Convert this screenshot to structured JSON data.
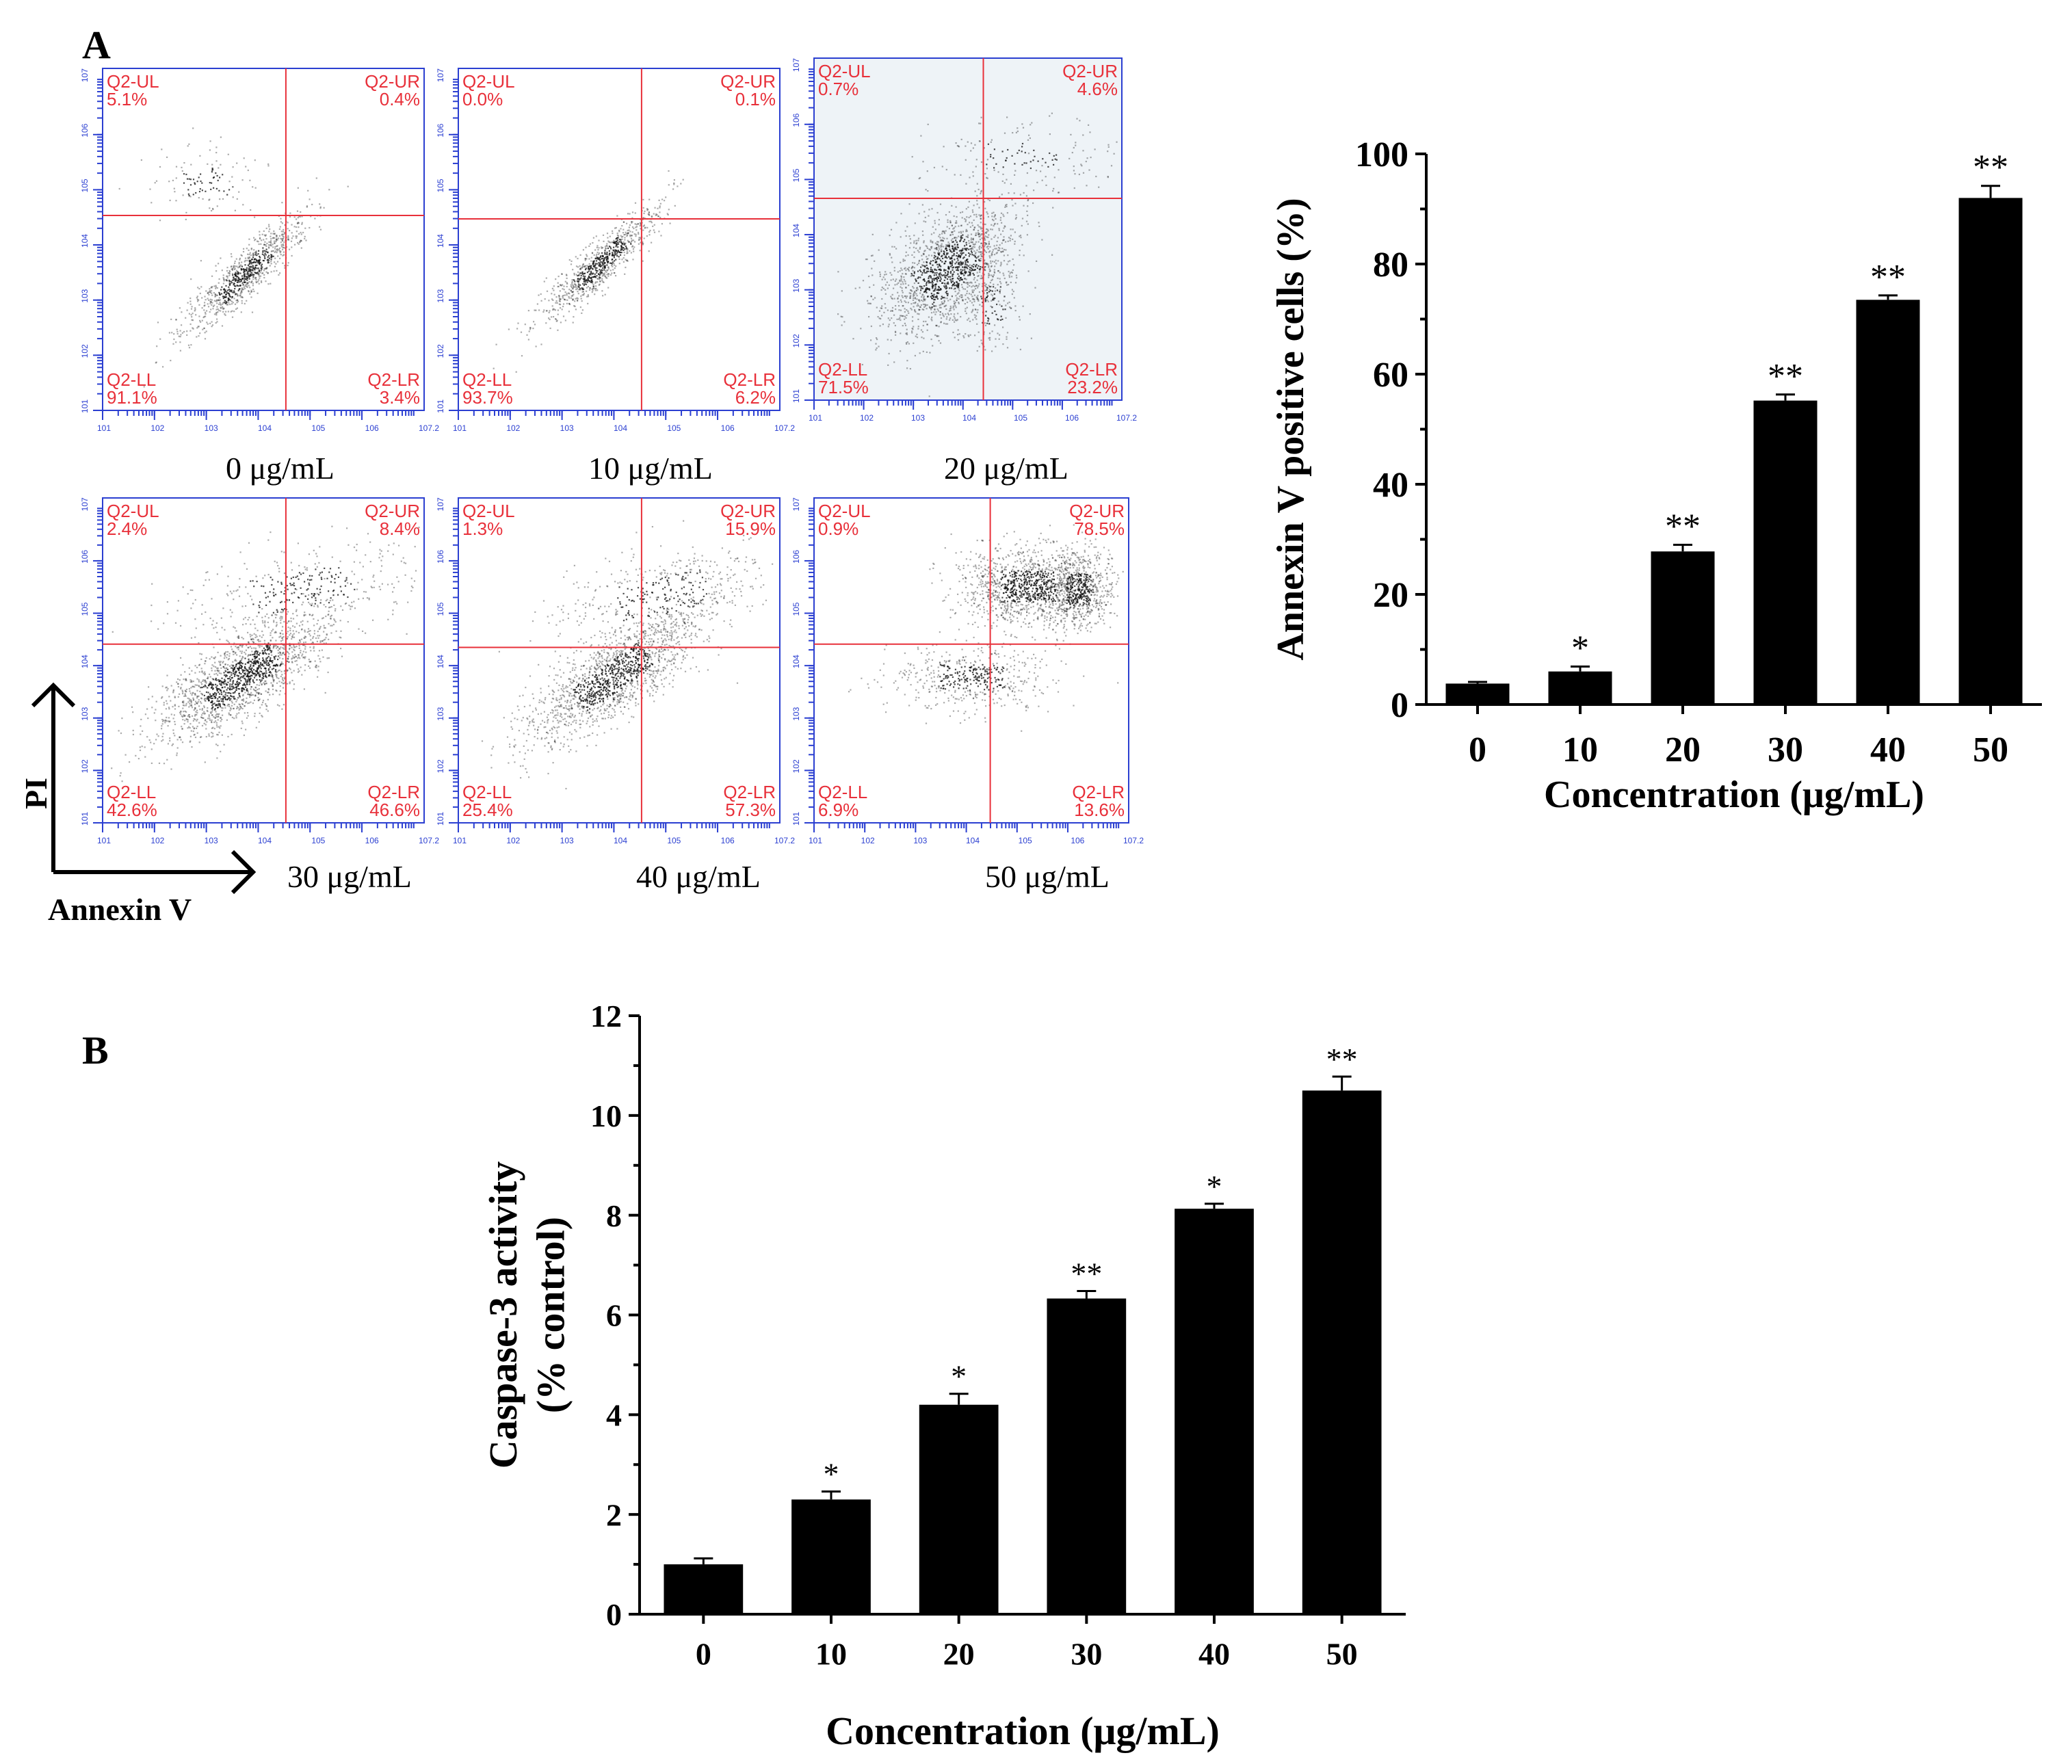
{
  "figure": {
    "panel_a_label": "A",
    "panel_b_label": "B",
    "facs_axis_y_label": "PI",
    "facs_axis_x_label": "Annexin V",
    "facs_gate_color": "#e8303a",
    "facs_axis_color": "#2b3fd1",
    "facs_x_ticks": [
      "1",
      "2",
      "3",
      "4",
      "5",
      "6",
      "7.2"
    ],
    "facs_y_ticks": [
      "1",
      "2",
      "3",
      "4",
      "5",
      "6",
      "7"
    ]
  },
  "flow_panels": [
    {
      "caption": "0 μg/mL",
      "quadrants": {
        "ul": {
          "name": "Q2-UL",
          "pct": "5.1%"
        },
        "ur": {
          "name": "Q2-UR",
          "pct": "0.4%"
        },
        "ll": {
          "name": "Q2-LL",
          "pct": "91.1%"
        },
        "lr": {
          "name": "Q2-LR",
          "pct": "3.4%"
        }
      }
    },
    {
      "caption": "10 μg/mL",
      "quadrants": {
        "ul": {
          "name": "Q2-UL",
          "pct": "0.0%"
        },
        "ur": {
          "name": "Q2-UR",
          "pct": "0.1%"
        },
        "ll": {
          "name": "Q2-LL",
          "pct": "93.7%"
        },
        "lr": {
          "name": "Q2-LR",
          "pct": "6.2%"
        }
      }
    },
    {
      "caption": "20 μg/mL",
      "quadrants": {
        "ul": {
          "name": "Q2-UL",
          "pct": "0.7%"
        },
        "ur": {
          "name": "Q2-UR",
          "pct": "4.6%"
        },
        "ll": {
          "name": "Q2-LL",
          "pct": "71.5%"
        },
        "lr": {
          "name": "Q2-LR",
          "pct": "23.2%"
        }
      }
    },
    {
      "caption": "30 μg/mL",
      "quadrants": {
        "ul": {
          "name": "Q2-UL",
          "pct": "2.4%"
        },
        "ur": {
          "name": "Q2-UR",
          "pct": "8.4%"
        },
        "ll": {
          "name": "Q2-LL",
          "pct": "42.6%"
        },
        "lr": {
          "name": "Q2-LR",
          "pct": "46.6%"
        }
      }
    },
    {
      "caption": "40 μg/mL",
      "quadrants": {
        "ul": {
          "name": "Q2-UL",
          "pct": "1.3%"
        },
        "ur": {
          "name": "Q2-UR",
          "pct": "15.9%"
        },
        "ll": {
          "name": "Q2-LL",
          "pct": "25.4%"
        },
        "lr": {
          "name": "Q2-LR",
          "pct": "57.3%"
        }
      }
    },
    {
      "caption": "50 μg/mL",
      "quadrants": {
        "ul": {
          "name": "Q2-UL",
          "pct": "0.9%"
        },
        "ur": {
          "name": "Q2-UR",
          "pct": "78.5%"
        },
        "ll": {
          "name": "Q2-LL",
          "pct": "6.9%"
        },
        "lr": {
          "name": "Q2-LR",
          "pct": "13.6%"
        }
      }
    }
  ],
  "chart_data": [
    {
      "type": "bar",
      "title": "",
      "xlabel": "Concentration (μg/mL)",
      "ylabel": "Annexin V positive cells (%)",
      "categories": [
        "0",
        "10",
        "20",
        "30",
        "40",
        "50"
      ],
      "values": [
        3.8,
        6.0,
        27.8,
        55.2,
        73.5,
        92.0
      ],
      "errors": [
        0.3,
        0.9,
        1.2,
        1.1,
        0.8,
        2.2
      ],
      "significance": [
        "",
        "*",
        "**",
        "**",
        "**",
        "**"
      ],
      "ylim": [
        0,
        100
      ],
      "yticks": [
        "0",
        "20",
        "40",
        "60",
        "80",
        "100"
      ],
      "grid": false,
      "bar_color": "#000000"
    },
    {
      "type": "bar",
      "title": "",
      "xlabel": "Concentration (μg/mL)",
      "ylabel": "Caspase-3 activity (% control)",
      "ylabel_lines": [
        "Caspase-3 activity",
        "(% control)"
      ],
      "categories": [
        "0",
        "10",
        "20",
        "30",
        "40",
        "50"
      ],
      "values": [
        1.0,
        2.3,
        4.2,
        6.33,
        8.13,
        10.5
      ],
      "errors": [
        0.12,
        0.16,
        0.22,
        0.15,
        0.1,
        0.28
      ],
      "significance": [
        "",
        "*",
        "*",
        "**",
        "*",
        "**"
      ],
      "ylim": [
        0,
        12
      ],
      "yticks": [
        "0",
        "2",
        "4",
        "6",
        "8",
        "10",
        "12"
      ],
      "grid": false,
      "bar_color": "#000000"
    }
  ]
}
